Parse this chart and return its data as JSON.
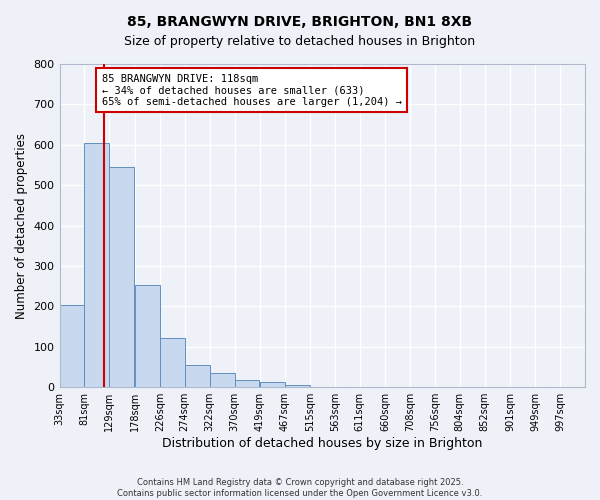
{
  "title": "85, BRANGWYN DRIVE, BRIGHTON, BN1 8XB",
  "subtitle": "Size of property relative to detached houses in Brighton",
  "xlabel": "Distribution of detached houses by size in Brighton",
  "ylabel": "Number of detached properties",
  "bar_values": [
    203,
    605,
    545,
    252,
    121,
    55,
    35,
    18,
    14,
    5,
    1,
    0,
    0,
    0,
    0,
    0,
    0,
    0,
    0,
    0
  ],
  "bin_labels": [
    "33sqm",
    "81sqm",
    "129sqm",
    "178sqm",
    "226sqm",
    "274sqm",
    "322sqm",
    "370sqm",
    "419sqm",
    "467sqm",
    "515sqm",
    "563sqm",
    "611sqm",
    "660sqm",
    "708sqm",
    "756sqm",
    "804sqm",
    "852sqm",
    "901sqm",
    "949sqm",
    "997sqm"
  ],
  "bin_edges": [
    33,
    81,
    129,
    178,
    226,
    274,
    322,
    370,
    419,
    467,
    515,
    563,
    611,
    660,
    708,
    756,
    804,
    852,
    901,
    949,
    997
  ],
  "bar_color": "#c8d8ee",
  "bar_edge_color": "#6090c0",
  "property_line_x": 118,
  "property_line_color": "#cc0000",
  "annotation_text": "85 BRANGWYN DRIVE: 118sqm\n← 34% of detached houses are smaller (633)\n65% of semi-detached houses are larger (1,204) →",
  "annotation_box_color": "#cc0000",
  "ylim": [
    0,
    800
  ],
  "yticks": [
    0,
    100,
    200,
    300,
    400,
    500,
    600,
    700,
    800
  ],
  "footer_line1": "Contains HM Land Registry data © Crown copyright and database right 2025.",
  "footer_line2": "Contains public sector information licensed under the Open Government Licence v3.0.",
  "bg_color": "#eef2f8",
  "plot_bg_color": "#eef2f8"
}
